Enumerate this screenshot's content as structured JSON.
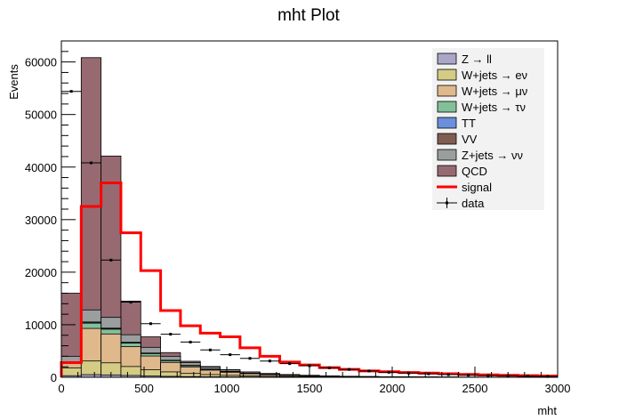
{
  "chart_data": {
    "type": "bar",
    "title": "mht Plot",
    "xlabel": "mht",
    "ylabel": "Events",
    "xlim": [
      0,
      3000
    ],
    "ylim": [
      0,
      64000
    ],
    "x_ticks": [
      0,
      500,
      1000,
      1500,
      2000,
      2500,
      3000
    ],
    "y_ticks": [
      0,
      10000,
      20000,
      30000,
      40000,
      50000,
      60000
    ],
    "grid": false,
    "legend_position": "top-right",
    "bin_edges": [
      0,
      120,
      240,
      360,
      480,
      600,
      720,
      840,
      960,
      1080,
      1200,
      1320,
      1440,
      1560,
      1680,
      1800,
      1920,
      2040,
      2160,
      2280,
      2400,
      2520,
      2640,
      2760,
      2880,
      3000
    ],
    "stack_series": [
      {
        "name": "Z → ll",
        "color": "#a9a6c8",
        "values": [
          300,
          500,
          450,
          350,
          250,
          180,
          130,
          90,
          60,
          45,
          30,
          20,
          15,
          10,
          8,
          6,
          4,
          3,
          2,
          2,
          1,
          1,
          1,
          0,
          0
        ]
      },
      {
        "name": "W+jets → eν",
        "color": "#d4cc85",
        "values": [
          1500,
          2600,
          2300,
          1700,
          1200,
          850,
          600,
          420,
          300,
          210,
          150,
          110,
          80,
          55,
          40,
          30,
          22,
          16,
          12,
          9,
          6,
          4,
          3,
          2,
          1
        ]
      },
      {
        "name": "W+jets → μν",
        "color": "#dfb98b",
        "values": [
          800,
          6200,
          5500,
          3800,
          2600,
          1800,
          1250,
          850,
          600,
          420,
          300,
          210,
          150,
          105,
          75,
          55,
          40,
          28,
          20,
          14,
          10,
          7,
          5,
          3,
          2
        ]
      },
      {
        "name": "W+jets → τν",
        "color": "#82c09a",
        "values": [
          300,
          1000,
          900,
          650,
          450,
          320,
          220,
          160,
          110,
          80,
          55,
          40,
          28,
          20,
          14,
          10,
          7,
          5,
          4,
          3,
          2,
          1,
          1,
          1,
          0
        ]
      },
      {
        "name": "TT",
        "color": "#6b8fdc",
        "values": [
          30,
          150,
          140,
          110,
          80,
          60,
          45,
          35,
          25,
          18,
          12,
          9,
          6,
          4,
          3,
          2,
          2,
          1,
          1,
          1,
          0,
          0,
          0,
          0,
          0
        ]
      },
      {
        "name": "VV",
        "color": "#7f5d50",
        "values": [
          20,
          70,
          60,
          50,
          35,
          25,
          18,
          13,
          9,
          7,
          5,
          4,
          3,
          2,
          2,
          1,
          1,
          1,
          0,
          0,
          0,
          0,
          0,
          0,
          0
        ]
      },
      {
        "name": "Z+jets → νν",
        "color": "#9b9e9e",
        "values": [
          1050,
          2300,
          2050,
          1440,
          1085,
          765,
          537,
          382,
          296,
          220,
          158,
          117,
          88,
          66,
          50,
          37,
          28,
          21,
          15,
          11,
          8,
          6,
          4,
          3,
          2
        ]
      },
      {
        "name": "QCD",
        "color": "#976a72",
        "values": [
          12000,
          48000,
          30700,
          6400,
          2000,
          700,
          250,
          100,
          50,
          20,
          10,
          5,
          3,
          2,
          1,
          1,
          0,
          0,
          0,
          0,
          0,
          0,
          0,
          0,
          0
        ]
      }
    ],
    "signal": {
      "name": "signal",
      "color": "#ff0000",
      "values": [
        2800,
        32500,
        37000,
        27500,
        20300,
        12700,
        9800,
        8400,
        7700,
        5600,
        4000,
        2900,
        2350,
        1850,
        1500,
        1200,
        1050,
        920,
        800,
        680,
        560,
        460,
        390,
        320,
        250
      ]
    },
    "data": {
      "name": "data",
      "values": [
        54400,
        40800,
        22300,
        14300,
        10200,
        8200,
        6700,
        5200,
        4300,
        3600,
        3100,
        2600,
        2200,
        1800,
        1500,
        1200,
        950,
        800,
        650,
        500,
        400,
        300,
        250,
        200,
        150
      ]
    }
  }
}
